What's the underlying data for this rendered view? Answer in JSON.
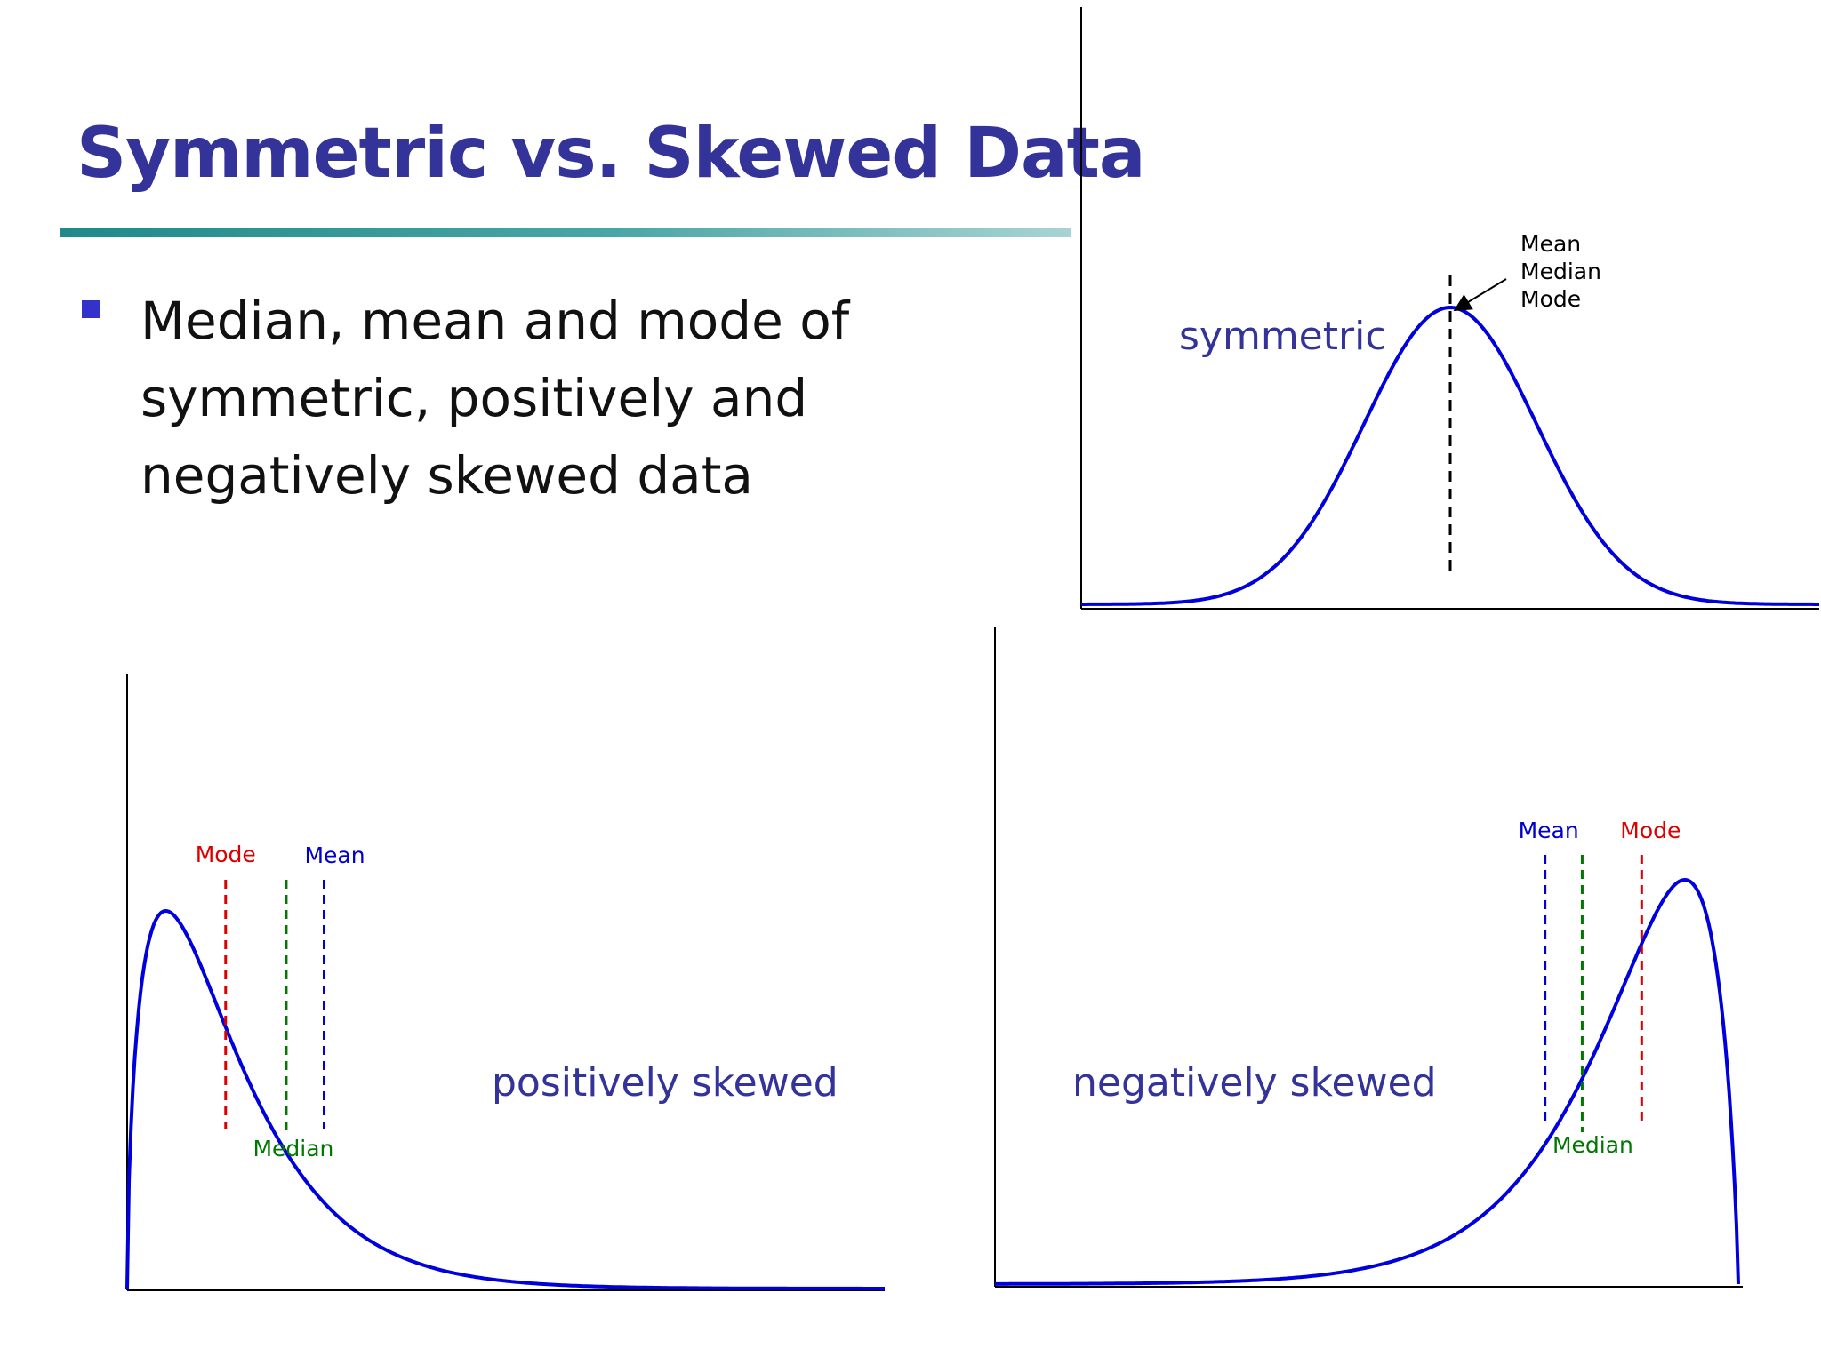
{
  "slide": {
    "title": "Symmetric vs. Skewed Data",
    "bullet_lines": [
      "Median, mean and mode of",
      "symmetric, positively and",
      "negatively skewed data"
    ]
  },
  "colors": {
    "title": "#333399",
    "curve": "#0000dd",
    "mode": "#dd0000",
    "median": "#007700",
    "mean": "#0000cc",
    "bullet": "#3333cc"
  },
  "chart_data": [
    {
      "type": "line",
      "curve": "symmetric",
      "panel_label": "symmetric",
      "annotation": [
        "Mean",
        "Median",
        "Mode"
      ],
      "markers": [
        {
          "name": "Mean / Median / Mode",
          "style": "dashed",
          "color": "#000000",
          "x": 0
        }
      ],
      "xlim": [
        -3.5,
        3.5
      ],
      "ylim": [
        0,
        1
      ]
    },
    {
      "type": "line",
      "curve": "positively skewed",
      "panel_label": "positively skewed",
      "markers": [
        {
          "name": "Mode",
          "color": "#dd0000",
          "x": 1.3
        },
        {
          "name": "Median",
          "color": "#007700",
          "x": 2.1
        },
        {
          "name": "Mean",
          "color": "#0000cc",
          "x": 2.6
        }
      ],
      "xlim": [
        0,
        10
      ],
      "ylim": [
        0,
        1
      ]
    },
    {
      "type": "line",
      "curve": "negatively skewed",
      "panel_label": "negatively skewed",
      "markers": [
        {
          "name": "Mean",
          "color": "#0000cc",
          "x": 7.4
        },
        {
          "name": "Median",
          "color": "#007700",
          "x": 7.9
        },
        {
          "name": "Mode",
          "color": "#dd0000",
          "x": 8.7
        }
      ],
      "xlim": [
        0,
        10
      ],
      "ylim": [
        0,
        1
      ]
    }
  ]
}
